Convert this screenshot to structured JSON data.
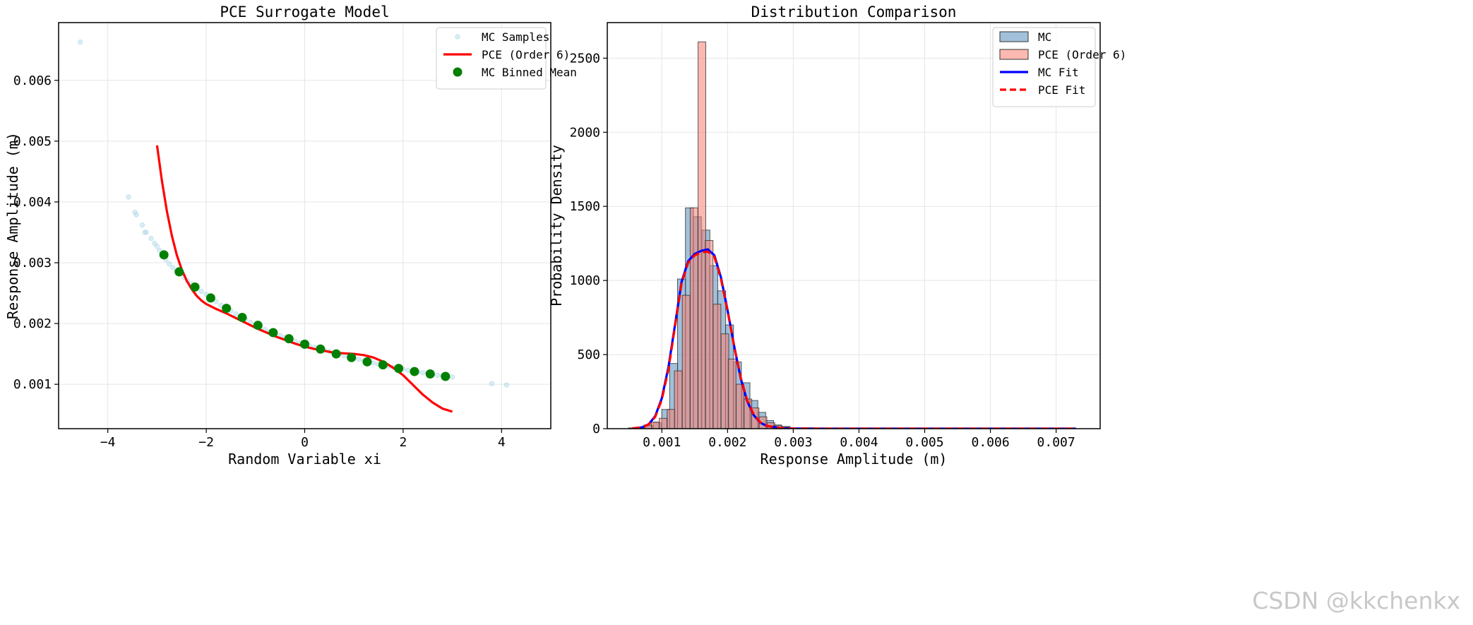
{
  "watermark": "CSDN @kkchenkx",
  "chart_data": [
    {
      "type": "scatter",
      "title": "PCE Surrogate Model",
      "xlabel": "Random Variable xi",
      "ylabel": "Response Amplitude (m)",
      "xlim": [
        -5.0,
        5.0
      ],
      "ylim": [
        0.00027,
        0.00695
      ],
      "xticks": [
        -4,
        -2,
        0,
        2,
        4
      ],
      "xtick_labels": [
        "−4",
        "−2",
        "0",
        "2",
        "4"
      ],
      "yticks": [
        0.001,
        0.002,
        0.003,
        0.004,
        0.005,
        0.006
      ],
      "ytick_labels": [
        "0.001",
        "0.002",
        "0.003",
        "0.004",
        "0.005",
        "0.006"
      ],
      "grid": true,
      "legend_position": "top-right",
      "legend": [
        "MC Samples",
        "PCE (Order 6)",
        "MC Binned Mean"
      ],
      "series": [
        {
          "name": "MC Samples",
          "color": "#add8e6",
          "points": [
            [
              -4.56,
              0.00663
            ],
            [
              -3.58,
              0.00408
            ],
            [
              -3.45,
              0.00383
            ],
            [
              -3.42,
              0.00379
            ],
            [
              -3.3,
              0.00362
            ],
            [
              -3.25,
              0.0035
            ],
            [
              -3.22,
              0.0035
            ],
            [
              -3.12,
              0.0034
            ],
            [
              -3.05,
              0.00332
            ],
            [
              -3.0,
              0.00327
            ],
            [
              -2.95,
              0.0032
            ],
            [
              -2.9,
              0.00315
            ],
            [
              -2.82,
              0.00305
            ],
            [
              -2.75,
              0.00298
            ],
            [
              -2.68,
              0.00292
            ],
            [
              -2.6,
              0.00286
            ],
            [
              -2.52,
              0.00282
            ],
            [
              -2.45,
              0.00276
            ],
            [
              -2.38,
              0.0027
            ],
            [
              -2.3,
              0.00265
            ],
            [
              -2.2,
              0.00259
            ],
            [
              -2.1,
              0.00253
            ],
            [
              -2.0,
              0.00248
            ],
            [
              -1.9,
              0.00242
            ],
            [
              -1.8,
              0.00236
            ],
            [
              -1.7,
              0.0023
            ],
            [
              -1.6,
              0.00225
            ],
            [
              -1.5,
              0.00221
            ],
            [
              -1.4,
              0.00216
            ],
            [
              -1.3,
              0.00211
            ],
            [
              -1.2,
              0.00207
            ],
            [
              -1.1,
              0.00202
            ],
            [
              -1.0,
              0.00198
            ],
            [
              -0.9,
              0.00194
            ],
            [
              -0.8,
              0.0019
            ],
            [
              -0.7,
              0.00187
            ],
            [
              -0.6,
              0.00183
            ],
            [
              -0.5,
              0.0018
            ],
            [
              -0.4,
              0.00177
            ],
            [
              -0.3,
              0.00174
            ],
            [
              -0.2,
              0.00171
            ],
            [
              -0.1,
              0.00168
            ],
            [
              0.0,
              0.00166
            ],
            [
              0.1,
              0.00163
            ],
            [
              0.2,
              0.00161
            ],
            [
              0.3,
              0.00158
            ],
            [
              0.4,
              0.00156
            ],
            [
              0.5,
              0.00154
            ],
            [
              0.6,
              0.00151
            ],
            [
              0.7,
              0.00149
            ],
            [
              0.8,
              0.00147
            ],
            [
              0.9,
              0.00145
            ],
            [
              1.0,
              0.00143
            ],
            [
              1.1,
              0.00141
            ],
            [
              1.2,
              0.00139
            ],
            [
              1.3,
              0.00137
            ],
            [
              1.4,
              0.00135
            ],
            [
              1.5,
              0.00133
            ],
            [
              1.6,
              0.00131
            ],
            [
              1.7,
              0.0013
            ],
            [
              1.8,
              0.00128
            ],
            [
              1.9,
              0.00126
            ],
            [
              2.0,
              0.00125
            ],
            [
              2.1,
              0.00123
            ],
            [
              2.2,
              0.00122
            ],
            [
              2.3,
              0.0012
            ],
            [
              2.4,
              0.00119
            ],
            [
              2.5,
              0.00118
            ],
            [
              2.6,
              0.00116
            ],
            [
              2.7,
              0.00115
            ],
            [
              2.8,
              0.00114
            ],
            [
              2.9,
              0.00113
            ],
            [
              3.0,
              0.00112
            ],
            [
              3.8,
              0.00101
            ],
            [
              4.1,
              0.00099
            ]
          ]
        },
        {
          "name": "PCE (Order 6)",
          "color": "#ff0000",
          "points": [
            [
              -3.0,
              0.00493
            ],
            [
              -2.9,
              0.00434
            ],
            [
              -2.8,
              0.00385
            ],
            [
              -2.7,
              0.00345
            ],
            [
              -2.6,
              0.00313
            ],
            [
              -2.5,
              0.00289
            ],
            [
              -2.4,
              0.00271
            ],
            [
              -2.3,
              0.00257
            ],
            [
              -2.2,
              0.00246
            ],
            [
              -2.1,
              0.00238
            ],
            [
              -2.0,
              0.00232
            ],
            [
              -1.8,
              0.00224
            ],
            [
              -1.6,
              0.00217
            ],
            [
              -1.4,
              0.00209
            ],
            [
              -1.2,
              0.00201
            ],
            [
              -1.0,
              0.00193
            ],
            [
              -0.8,
              0.00186
            ],
            [
              -0.6,
              0.00179
            ],
            [
              -0.4,
              0.00173
            ],
            [
              -0.2,
              0.00167
            ],
            [
              0.0,
              0.00162
            ],
            [
              0.2,
              0.00158
            ],
            [
              0.4,
              0.00155
            ],
            [
              0.6,
              0.00152
            ],
            [
              0.8,
              0.00151
            ],
            [
              1.0,
              0.0015
            ],
            [
              1.2,
              0.00148
            ],
            [
              1.4,
              0.00144
            ],
            [
              1.6,
              0.00137
            ],
            [
              1.8,
              0.00127
            ],
            [
              2.0,
              0.00115
            ],
            [
              2.2,
              0.00099
            ],
            [
              2.4,
              0.00083
            ],
            [
              2.6,
              0.0007
            ],
            [
              2.8,
              0.0006
            ],
            [
              3.0,
              0.00055
            ]
          ]
        },
        {
          "name": "MC Binned Mean",
          "color": "#008000",
          "points": [
            [
              -2.86,
              0.00313
            ],
            [
              -2.55,
              0.00285
            ],
            [
              -2.23,
              0.0026
            ],
            [
              -1.91,
              0.00242
            ],
            [
              -1.59,
              0.00225
            ],
            [
              -1.27,
              0.0021
            ],
            [
              -0.95,
              0.00197
            ],
            [
              -0.64,
              0.00185
            ],
            [
              -0.32,
              0.00175
            ],
            [
              0.0,
              0.00166
            ],
            [
              0.32,
              0.00158
            ],
            [
              0.64,
              0.0015
            ],
            [
              0.95,
              0.00144
            ],
            [
              1.27,
              0.00137
            ],
            [
              1.59,
              0.00132
            ],
            [
              1.91,
              0.00126
            ],
            [
              2.23,
              0.00121
            ],
            [
              2.55,
              0.00117
            ],
            [
              2.86,
              0.00113
            ]
          ]
        }
      ]
    },
    {
      "type": "bar",
      "title": "Distribution Comparison",
      "xlabel": "Response Amplitude (m)",
      "ylabel": "Probability Density",
      "xlim": [
        0.00017,
        0.00767
      ],
      "ylim": [
        0,
        2740
      ],
      "xticks": [
        0.001,
        0.002,
        0.003,
        0.004,
        0.005,
        0.006,
        0.007
      ],
      "xtick_labels": [
        "0.001",
        "0.002",
        "0.003",
        "0.004",
        "0.005",
        "0.006",
        "0.007"
      ],
      "yticks": [
        0,
        500,
        1000,
        1500,
        2000,
        2500
      ],
      "ytick_labels": [
        "0",
        "500",
        "1000",
        "1500",
        "2000",
        "2500"
      ],
      "grid": true,
      "legend_position": "top-right",
      "legend": [
        "MC",
        "PCE (Order 6)",
        "MC Fit",
        "PCE Fit"
      ],
      "series": [
        {
          "name": "MC",
          "color": "#4682b4",
          "bin_width": 0.000122,
          "bins": [
            [
              0.00057,
              5
            ],
            [
              0.00069,
              10
            ],
            [
              0.00081,
              20
            ],
            [
              0.00093,
              40
            ],
            [
              0.00106,
              130
            ],
            [
              0.00118,
              440
            ],
            [
              0.0013,
              1010
            ],
            [
              0.00142,
              1490
            ],
            [
              0.00154,
              1430
            ],
            [
              0.00167,
              1340
            ],
            [
              0.00179,
              1100
            ],
            [
              0.00191,
              930
            ],
            [
              0.00203,
              700
            ],
            [
              0.00215,
              450
            ],
            [
              0.00228,
              310
            ],
            [
              0.0024,
              190
            ],
            [
              0.00252,
              110
            ],
            [
              0.00264,
              55
            ],
            [
              0.00276,
              25
            ],
            [
              0.00289,
              15
            ],
            [
              0.00301,
              5
            ]
          ]
        },
        {
          "name": "PCE (Order 6)",
          "color": "#fa8072",
          "bin_width": 0.000117,
          "bins": [
            [
              0.00055,
              5
            ],
            [
              0.00067,
              10
            ],
            [
              0.00079,
              25
            ],
            [
              0.0009,
              45
            ],
            [
              0.00102,
              70
            ],
            [
              0.00114,
              130
            ],
            [
              0.00125,
              390
            ],
            [
              0.00137,
              900
            ],
            [
              0.00149,
              1490
            ],
            [
              0.00161,
              2610
            ],
            [
              0.00172,
              1270
            ],
            [
              0.00184,
              840
            ],
            [
              0.00196,
              640
            ],
            [
              0.00207,
              470
            ],
            [
              0.00219,
              300
            ],
            [
              0.00231,
              200
            ],
            [
              0.00242,
              140
            ],
            [
              0.00254,
              80
            ],
            [
              0.00266,
              40
            ],
            [
              0.00277,
              20
            ],
            [
              0.00289,
              10
            ],
            [
              0.00301,
              5
            ]
          ]
        },
        {
          "name": "MC Fit",
          "color": "#0000ff",
          "points": [
            [
              0.00055,
              2
            ],
            [
              0.0007,
              9
            ],
            [
              0.0008,
              30
            ],
            [
              0.0009,
              85
            ],
            [
              0.001,
              205
            ],
            [
              0.0011,
              415
            ],
            [
              0.0012,
              700
            ],
            [
              0.0013,
              990
            ],
            [
              0.0014,
              1130
            ],
            [
              0.0015,
              1180
            ],
            [
              0.0016,
              1200
            ],
            [
              0.0017,
              1210
            ],
            [
              0.0018,
              1170
            ],
            [
              0.0019,
              1020
            ],
            [
              0.002,
              800
            ],
            [
              0.0021,
              560
            ],
            [
              0.0022,
              340
            ],
            [
              0.0023,
              185
            ],
            [
              0.0024,
              90
            ],
            [
              0.0025,
              40
            ],
            [
              0.0026,
              18
            ],
            [
              0.0028,
              4
            ],
            [
              0.003,
              1
            ],
            [
              0.0035,
              0
            ],
            [
              0.005,
              0
            ],
            [
              0.0073,
              0
            ]
          ]
        },
        {
          "name": "PCE Fit",
          "color": "#ff0000",
          "points": [
            [
              0.00055,
              2
            ],
            [
              0.0007,
              9
            ],
            [
              0.0008,
              28
            ],
            [
              0.0009,
              80
            ],
            [
              0.001,
              195
            ],
            [
              0.0011,
              400
            ],
            [
              0.0012,
              690
            ],
            [
              0.0013,
              980
            ],
            [
              0.0014,
              1120
            ],
            [
              0.0015,
              1170
            ],
            [
              0.0016,
              1190
            ],
            [
              0.0017,
              1195
            ],
            [
              0.0018,
              1160
            ],
            [
              0.0019,
              1010
            ],
            [
              0.002,
              795
            ],
            [
              0.0021,
              560
            ],
            [
              0.0022,
              345
            ],
            [
              0.0023,
              190
            ],
            [
              0.0024,
              95
            ],
            [
              0.0025,
              42
            ],
            [
              0.0026,
              19
            ],
            [
              0.0028,
              4
            ],
            [
              0.003,
              1
            ],
            [
              0.0035,
              0
            ],
            [
              0.005,
              0
            ],
            [
              0.0073,
              0
            ]
          ]
        }
      ]
    }
  ]
}
